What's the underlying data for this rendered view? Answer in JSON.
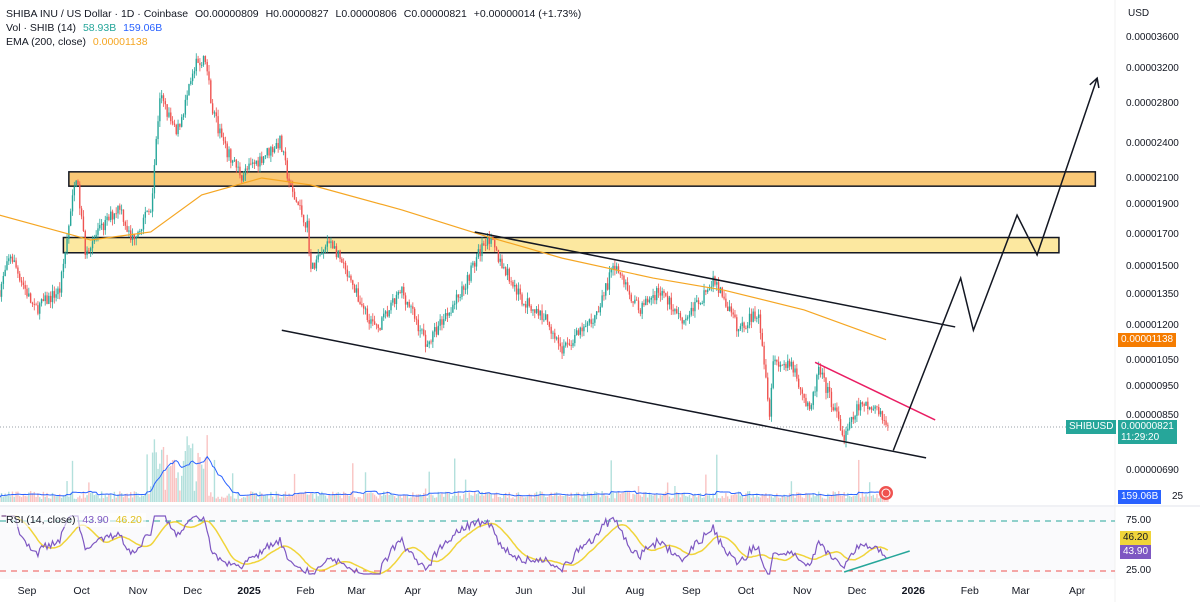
{
  "header": {
    "symbol_title": "SHIBA INU / US Dollar · 1D · Coinbase",
    "open": "O0.00000809",
    "high": "H0.00000827",
    "low": "L0.00000806",
    "close": "C0.00000821",
    "change": "+0.00000014 (+1.73%)",
    "vol_label": "Vol · SHIB (14)",
    "vol_value": "58.93B",
    "vol_ma_value": "159.06B",
    "ema_label": "EMA (200, close)",
    "ema_value": "0.00001138",
    "rsi_label": "RSI (14, close)",
    "rsi_value": "43.90",
    "rsi_ma_value": "46.20"
  },
  "axis": {
    "currency": "USD",
    "price_ticks": [
      {
        "label": "0.00003600",
        "value": 3600
      },
      {
        "label": "0.00003200",
        "value": 3200
      },
      {
        "label": "0.00002800",
        "value": 2800
      },
      {
        "label": "0.00002400",
        "value": 2400
      },
      {
        "label": "0.00002100",
        "value": 2100
      },
      {
        "label": "0.00001900",
        "value": 1900
      },
      {
        "label": "0.00001700",
        "value": 1700
      },
      {
        "label": "0.00001500",
        "value": 1500
      },
      {
        "label": "0.00001350",
        "value": 1350
      },
      {
        "label": "0.00001200",
        "value": 1200
      },
      {
        "label": "0.00001050",
        "value": 1050
      },
      {
        "label": "0.00000950",
        "value": 950
      },
      {
        "label": "0.00000850",
        "value": 850
      },
      {
        "label": "0.00000690",
        "value": 690
      }
    ],
    "ema_tag": "0.00001138",
    "symbol_tag": "SHIBUSD",
    "price_tag": "0.00000821",
    "countdown": "11:29:20",
    "volume_tag": "159.06B",
    "volume_tick": "25",
    "rsi_ticks": [
      "75.00",
      "25.00"
    ],
    "rsi_ma_tag": "46.20",
    "rsi_tag": "43.90",
    "time_ticks": [
      {
        "label": "Sep",
        "day": 0
      },
      {
        "label": "Oct",
        "day": 30
      },
      {
        "label": "Nov",
        "day": 61
      },
      {
        "label": "Dec",
        "day": 91
      },
      {
        "label": "2025",
        "day": 122,
        "bold": true
      },
      {
        "label": "Feb",
        "day": 153
      },
      {
        "label": "Mar",
        "day": 181
      },
      {
        "label": "Apr",
        "day": 212
      },
      {
        "label": "May",
        "day": 242
      },
      {
        "label": "Jun",
        "day": 273
      },
      {
        "label": "Jul",
        "day": 303
      },
      {
        "label": "Aug",
        "day": 334
      },
      {
        "label": "Sep",
        "day": 365
      },
      {
        "label": "Oct",
        "day": 395
      },
      {
        "label": "Nov",
        "day": 426
      },
      {
        "label": "Dec",
        "day": 456
      },
      {
        "label": "2026",
        "day": 487,
        "bold": true
      },
      {
        "label": "Feb",
        "day": 518
      },
      {
        "label": "Mar",
        "day": 546
      },
      {
        "label": "Apr",
        "day": 577
      }
    ]
  },
  "colors": {
    "up": "#26a69a",
    "down": "#ef5350",
    "ema": "#f5a623",
    "vol_ma": "#2962ff",
    "rsi": "#7e57c2",
    "rsi_ma": "#f0d43a",
    "zone": "#f9c877",
    "zone2": "#fce8a0",
    "volume_tag": "#2962ff"
  },
  "chart_data": {
    "type": "candlestick",
    "title": "SHIBA INU / US Dollar · 1D · Coinbase",
    "price_scale": "log, values x1e-8 USD",
    "x_unit": "days since 2024-09-01",
    "ylim": [
      690,
      3600
    ],
    "price_path": [
      [
        -15,
        1375
      ],
      [
        -9,
        1573
      ],
      [
        4,
        1275
      ],
      [
        18,
        1375
      ],
      [
        27,
        2133
      ],
      [
        32,
        1603
      ],
      [
        51,
        1904
      ],
      [
        57,
        1665
      ],
      [
        68,
        1870
      ],
      [
        73,
        2896
      ],
      [
        82,
        2486
      ],
      [
        93,
        3248
      ],
      [
        98,
        3320
      ],
      [
        102,
        2734
      ],
      [
        109,
        2348
      ],
      [
        118,
        2133
      ],
      [
        130,
        2300
      ],
      [
        139,
        2425
      ],
      [
        145,
        2015
      ],
      [
        154,
        1764
      ],
      [
        156,
        1485
      ],
      [
        167,
        1665
      ],
      [
        178,
        1403
      ],
      [
        192,
        1180
      ],
      [
        206,
        1375
      ],
      [
        220,
        1115
      ],
      [
        228,
        1227
      ],
      [
        239,
        1375
      ],
      [
        253,
        1697
      ],
      [
        261,
        1515
      ],
      [
        272,
        1325
      ],
      [
        286,
        1227
      ],
      [
        294,
        1094
      ],
      [
        311,
        1227
      ],
      [
        323,
        1515
      ],
      [
        336,
        1275
      ],
      [
        347,
        1375
      ],
      [
        361,
        1227
      ],
      [
        378,
        1429
      ],
      [
        391,
        1180
      ],
      [
        402,
        1275
      ],
      [
        408,
        870
      ],
      [
        410,
        1053
      ],
      [
        422,
        1014
      ],
      [
        430,
        855
      ],
      [
        435,
        1014
      ],
      [
        444,
        870
      ],
      [
        449,
        777
      ],
      [
        457,
        887
      ],
      [
        466,
        870
      ],
      [
        473,
        821
      ]
    ],
    "ema200": [
      [
        -15,
        1831
      ],
      [
        35,
        1665
      ],
      [
        68,
        1717
      ],
      [
        96,
        1978
      ],
      [
        129,
        2110
      ],
      [
        156,
        2054
      ],
      [
        206,
        1868
      ],
      [
        250,
        1697
      ],
      [
        294,
        1554
      ],
      [
        344,
        1440
      ],
      [
        383,
        1375
      ],
      [
        427,
        1275
      ],
      [
        472,
        1138
      ]
    ],
    "zones": [
      {
        "name": "resistance-zone-upper",
        "from_day": 23,
        "to_day": 587,
        "low": 2045,
        "high": 2160
      },
      {
        "name": "resistance-zone-lower",
        "from_day": 20,
        "to_day": 567,
        "low": 1586,
        "high": 1681
      }
    ],
    "trendlines": [
      {
        "name": "channel-lower",
        "points": [
          [
            140,
            1180
          ],
          [
            494,
            725
          ]
        ],
        "color": "#131722"
      },
      {
        "name": "channel-upper",
        "points": [
          [
            246,
            1717
          ],
          [
            510,
            1195
          ]
        ],
        "color": "#131722"
      },
      {
        "name": "short-term-resistance",
        "points": [
          [
            433,
            1044
          ],
          [
            499,
            838
          ]
        ],
        "color": "#e91e63"
      }
    ],
    "projection": [
      [
        476,
        746
      ],
      [
        513,
        1440
      ],
      [
        520,
        1180
      ],
      [
        544,
        1831
      ],
      [
        555,
        1573
      ],
      [
        588,
        3089
      ]
    ],
    "rsi_levels": [
      75,
      25
    ],
    "rsi_divergence": [
      [
        449,
        24
      ],
      [
        485,
        45
      ]
    ],
    "last_price": 821
  }
}
